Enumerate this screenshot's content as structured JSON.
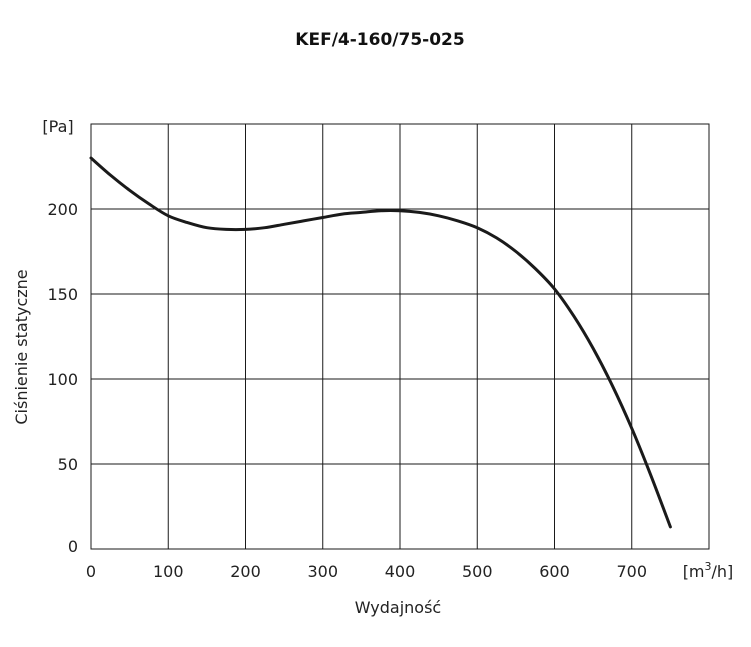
{
  "chart_data": {
    "type": "line",
    "title": "KEF/4-160/75-025",
    "xlabel": "Wydajność",
    "ylabel": "Ciśnienie statyczne",
    "x_unit_prefix": "[m",
    "x_unit_exp": "3",
    "x_unit_suffix": "/h]",
    "y_unit": "[Pa]",
    "xlim": [
      0,
      800
    ],
    "ylim": [
      0,
      250
    ],
    "x_ticks": [
      "0",
      "100",
      "200",
      "300",
      "400",
      "500",
      "600",
      "700"
    ],
    "x_tick_values": [
      0,
      100,
      200,
      300,
      400,
      500,
      600,
      700
    ],
    "y_ticks": [
      "0",
      "50",
      "100",
      "150",
      "200"
    ],
    "y_tick_values": [
      0,
      50,
      100,
      150,
      200
    ],
    "grid": true,
    "series": [
      {
        "color": "#1a1a1a",
        "x": [
          0,
          25,
          50,
          75,
          100,
          125,
          150,
          175,
          200,
          225,
          250,
          275,
          300,
          325,
          350,
          375,
          400,
          425,
          450,
          475,
          500,
          525,
          550,
          575,
          600,
          625,
          650,
          675,
          700,
          725,
          750
        ],
        "y": [
          230,
          220,
          211,
          203,
          196,
          192,
          189,
          188,
          188,
          189,
          191,
          193,
          195,
          197,
          198,
          199,
          199,
          198,
          196,
          193,
          189,
          183,
          175,
          165,
          153,
          137,
          118,
          96,
          71,
          43,
          13
        ]
      }
    ]
  }
}
